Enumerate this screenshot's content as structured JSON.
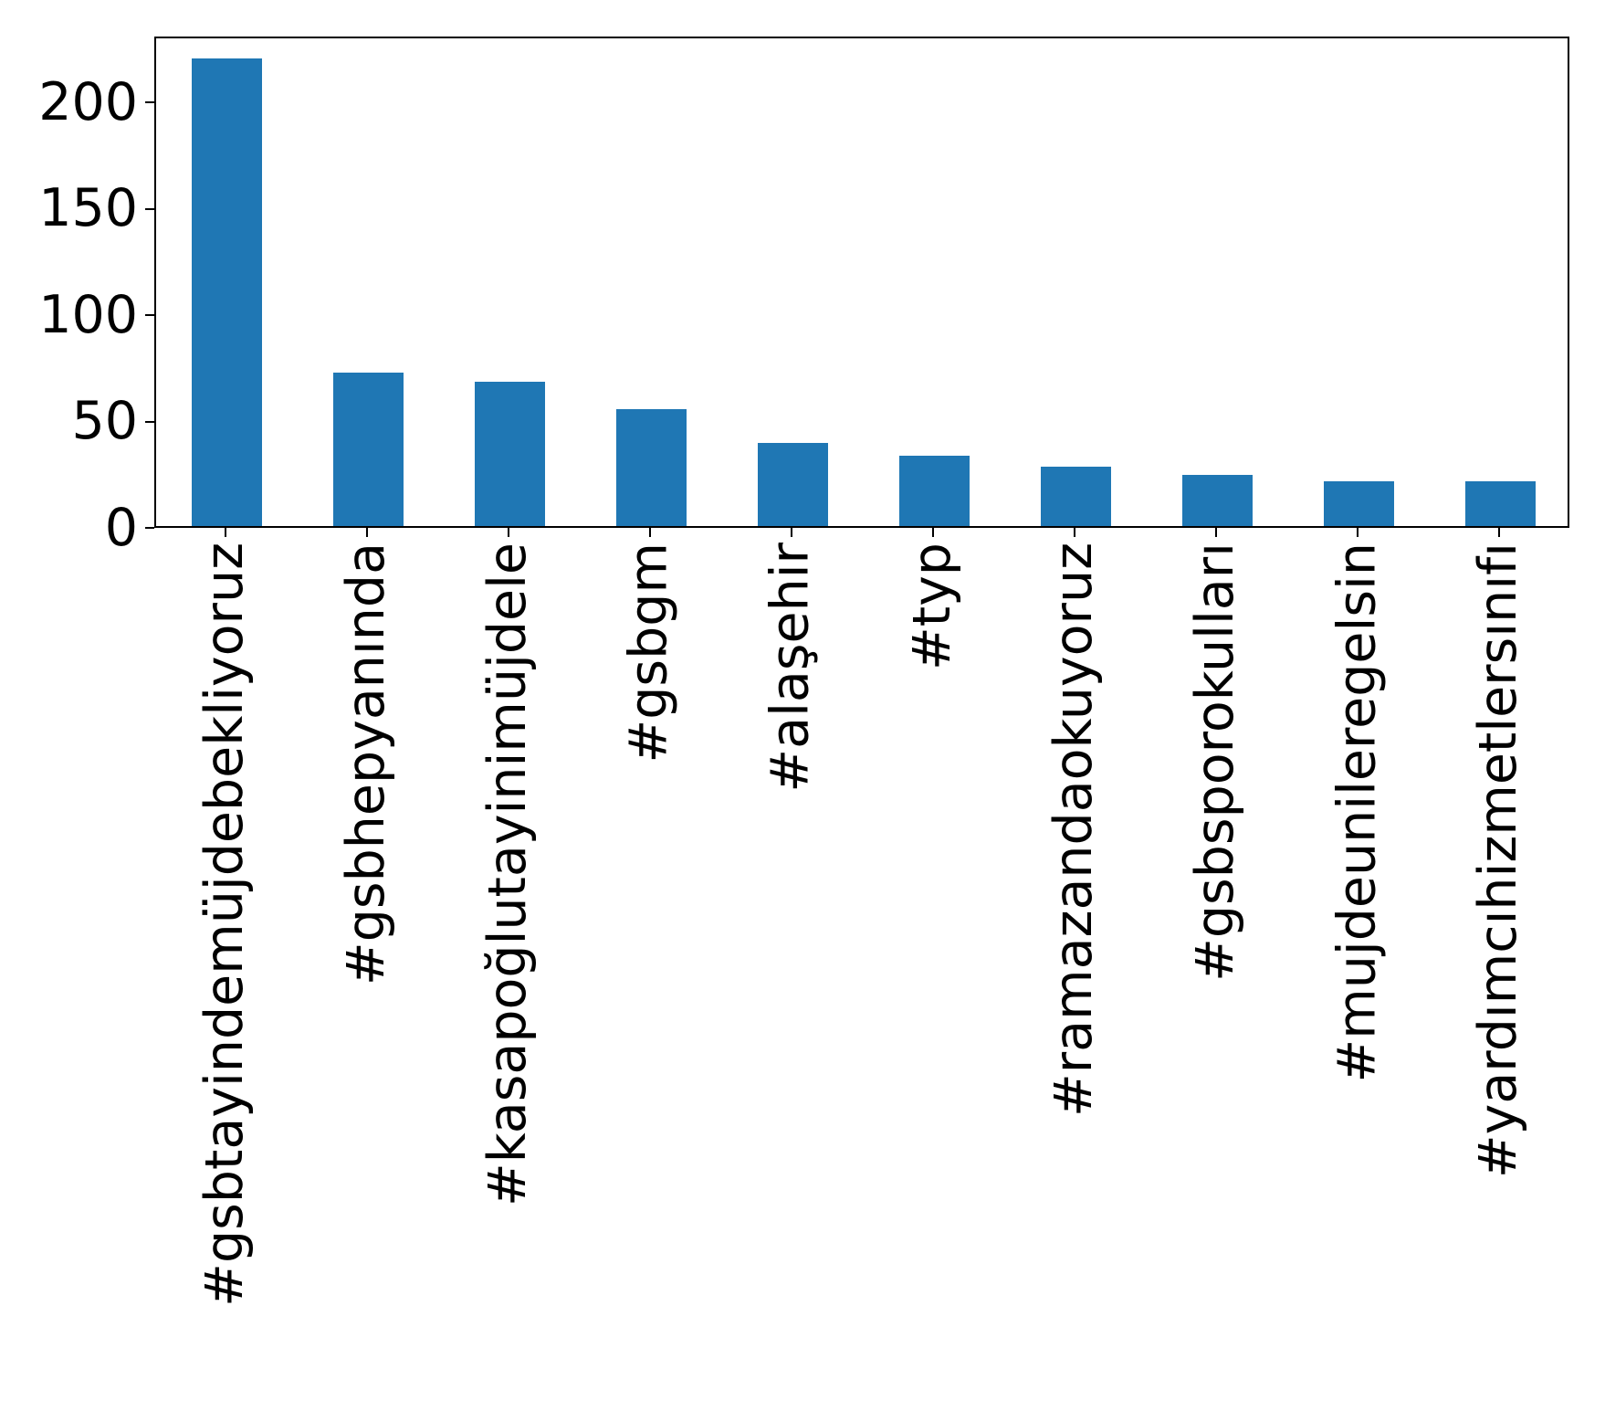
{
  "chart_data": {
    "type": "bar",
    "title": "",
    "xlabel": "",
    "ylabel": "",
    "categories": [
      "#gsbtayindemüjdebekliyoruz",
      "#gsbhepyanında",
      "#kasapoğlutayinimüjdele",
      "#gsbgm",
      "#alaşehir",
      "#typ",
      "#ramazandaokuyoruz",
      "#gsbsporokulları",
      "#mujdeunileregelsin",
      "#yardımcıhizmetlersınıfı"
    ],
    "values": [
      220,
      72,
      68,
      55,
      39,
      33,
      28,
      24,
      21,
      21
    ],
    "yticks": [
      0,
      50,
      100,
      150,
      200
    ],
    "ytick_labels": [
      "0",
      "50",
      "100",
      "150",
      "200"
    ],
    "ylim": [
      0,
      231
    ],
    "x_tick_rotation_deg": 90,
    "grid": false,
    "legend": null,
    "bar_color": "#1f77b4",
    "axis_color": "#000000",
    "background_color": "#ffffff"
  }
}
